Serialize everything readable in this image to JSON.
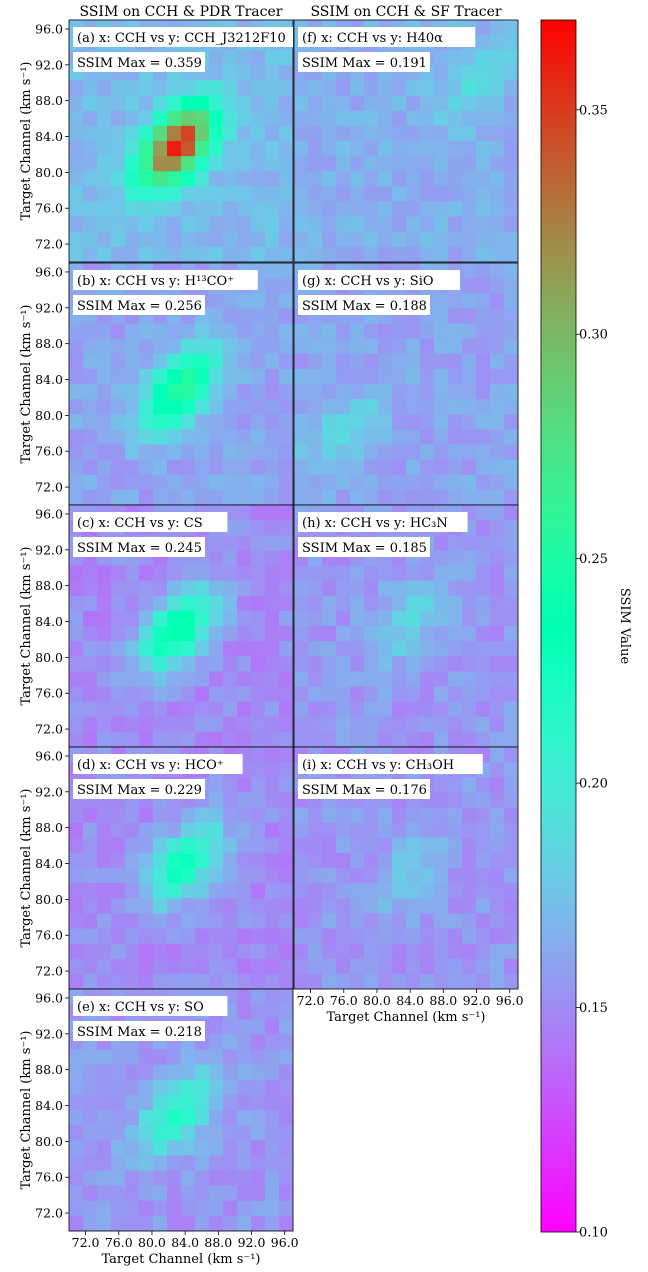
{
  "columns": [
    "SSIM on CCH & PDR Tracer",
    "SSIM on CCH & SF Tracer"
  ],
  "axis": {
    "ylabel": "Target Channel (km s⁻¹)",
    "xlabel": "Target Channel (km s⁻¹)",
    "ticks": [
      "72.0",
      "76.0",
      "80.0",
      "84.0",
      "88.0",
      "92.0",
      "96.0"
    ]
  },
  "colorbar": {
    "label": "SSIM Value",
    "min": 0.1,
    "max": 0.37,
    "ticks": [
      "0.10",
      "0.15",
      "0.20",
      "0.25",
      "0.30",
      "0.35"
    ],
    "colormap": "rainbow"
  },
  "panels": [
    {
      "id": "a",
      "label": "(a) x: CCH vs y: CCH_J3212F10",
      "ssim_max_label": "SSIM Max = 0.359",
      "column": 0,
      "row": 0
    },
    {
      "id": "b",
      "label": "(b) x: CCH vs y: H¹³CO⁺",
      "ssim_max_label": "SSIM Max = 0.256",
      "column": 0,
      "row": 1
    },
    {
      "id": "c",
      "label": "(c) x: CCH vs y: CS",
      "ssim_max_label": "SSIM Max = 0.245",
      "column": 0,
      "row": 2
    },
    {
      "id": "d",
      "label": "(d) x: CCH vs y: HCO⁺",
      "ssim_max_label": "SSIM Max = 0.229",
      "column": 0,
      "row": 3
    },
    {
      "id": "e",
      "label": "(e) x: CCH vs y: SO",
      "ssim_max_label": "SSIM Max = 0.218",
      "column": 0,
      "row": 4
    },
    {
      "id": "f",
      "label": "(f)  x: CCH vs y: H40α",
      "ssim_max_label": "SSIM Max = 0.191",
      "column": 1,
      "row": 0
    },
    {
      "id": "g",
      "label": "(g) x: CCH vs y: SiO",
      "ssim_max_label": "SSIM Max = 0.188",
      "column": 1,
      "row": 1
    },
    {
      "id": "h",
      "label": "(h) x: CCH vs y: HC₃N",
      "ssim_max_label": "SSIM Max = 0.185",
      "column": 1,
      "row": 2
    },
    {
      "id": "i",
      "label": "(i)  x: CCH vs y: CH₃OH",
      "ssim_max_label": "SSIM Max = 0.176",
      "column": 1,
      "row": 3
    }
  ],
  "chart_data": {
    "type": "heatmap",
    "x_range_kms": [
      70.0,
      97.0
    ],
    "y_range_kms": [
      70.0,
      97.0
    ],
    "value_range": [
      0.1,
      0.37
    ],
    "panel_peaks": [
      {
        "panel": "a",
        "peak_x_kms": 83.0,
        "peak_y_kms": 83.0,
        "peak_value": 0.359,
        "background_value": 0.17
      },
      {
        "panel": "b",
        "peak_x_kms": 83.5,
        "peak_y_kms": 83.0,
        "peak_value": 0.256,
        "background_value": 0.16
      },
      {
        "panel": "c",
        "peak_x_kms": 83.0,
        "peak_y_kms": 83.0,
        "peak_value": 0.245,
        "background_value": 0.15
      },
      {
        "panel": "d",
        "peak_x_kms": 84.0,
        "peak_y_kms": 84.0,
        "peak_value": 0.229,
        "background_value": 0.15
      },
      {
        "panel": "e",
        "peak_x_kms": 83.0,
        "peak_y_kms": 83.0,
        "peak_value": 0.218,
        "background_value": 0.155
      },
      {
        "panel": "f",
        "peak_x_kms": 92.0,
        "peak_y_kms": 90.0,
        "peak_value": 0.191,
        "background_value": 0.165
      },
      {
        "panel": "g",
        "peak_x_kms": 76.0,
        "peak_y_kms": 78.0,
        "peak_value": 0.188,
        "background_value": 0.16
      },
      {
        "panel": "h",
        "peak_x_kms": 84.0,
        "peak_y_kms": 84.0,
        "peak_value": 0.185,
        "background_value": 0.155
      },
      {
        "panel": "i",
        "peak_x_kms": 84.0,
        "peak_y_kms": 83.0,
        "peak_value": 0.176,
        "background_value": 0.155
      }
    ]
  }
}
